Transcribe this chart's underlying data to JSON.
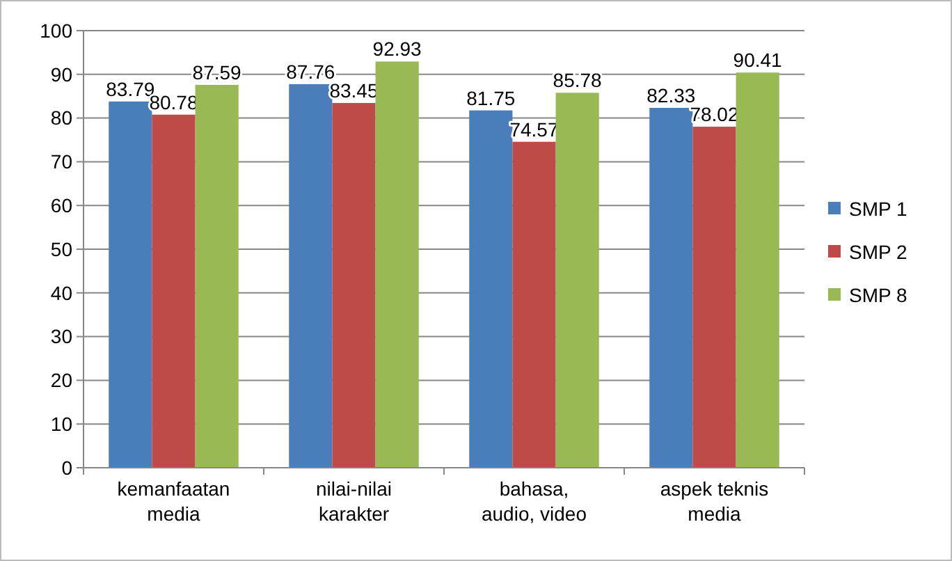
{
  "chart_data": {
    "type": "bar",
    "categories": [
      "kemanfaatan media",
      "nilai-nilai karakter",
      "bahasa, audio, video",
      "aspek teknis media"
    ],
    "series": [
      {
        "name": "SMP 1",
        "color": "#4a7ebb",
        "values": [
          83.79,
          87.76,
          81.75,
          82.33
        ]
      },
      {
        "name": "SMP 2",
        "color": "#be4b48",
        "values": [
          80.78,
          83.45,
          74.57,
          78.02
        ]
      },
      {
        "name": "SMP 8",
        "color": "#98b954",
        "values": [
          87.59,
          92.93,
          85.78,
          90.41
        ]
      }
    ],
    "ylim": [
      0,
      100
    ],
    "yticks": [
      0,
      10,
      20,
      30,
      40,
      50,
      60,
      70,
      80,
      90,
      100
    ],
    "grid": "y",
    "legend": "right",
    "data_labels": true
  }
}
